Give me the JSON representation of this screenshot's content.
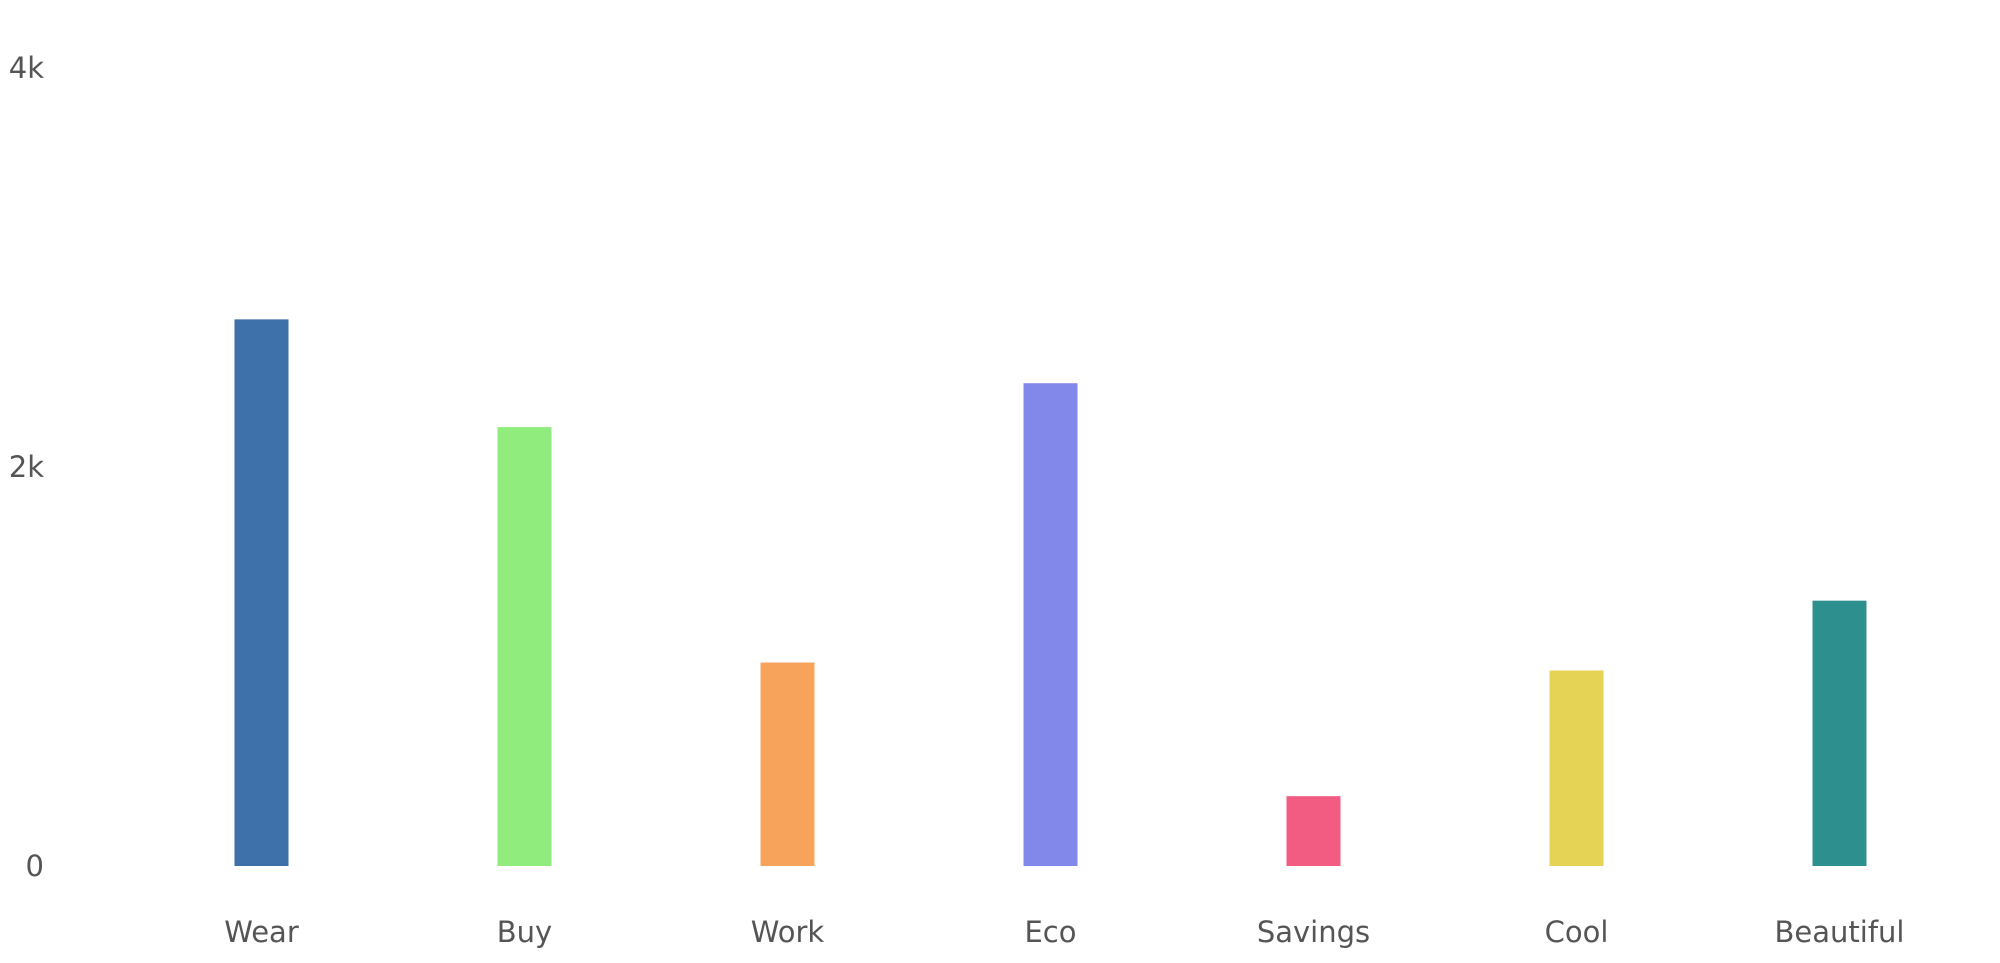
{
  "chart_data": {
    "type": "bar",
    "title": "",
    "xlabel": "",
    "ylabel": "",
    "categories": [
      "Wear",
      "Buy",
      "Work",
      "Eco",
      "Savings",
      "Cool",
      "Beautiful"
    ],
    "values": [
      2740,
      2200,
      1020,
      2420,
      350,
      980,
      1330
    ],
    "colors": [
      "#3e70aa",
      "#90ec7c",
      "#f7a35c",
      "#8287ea",
      "#f25c82",
      "#e4d354",
      "#2e8f8f"
    ],
    "ylim": [
      0,
      4000
    ],
    "yticks": [
      0,
      2000,
      4000
    ],
    "ytick_labels": [
      "0",
      "2k",
      "4k"
    ],
    "grid": false,
    "legend": "none"
  }
}
